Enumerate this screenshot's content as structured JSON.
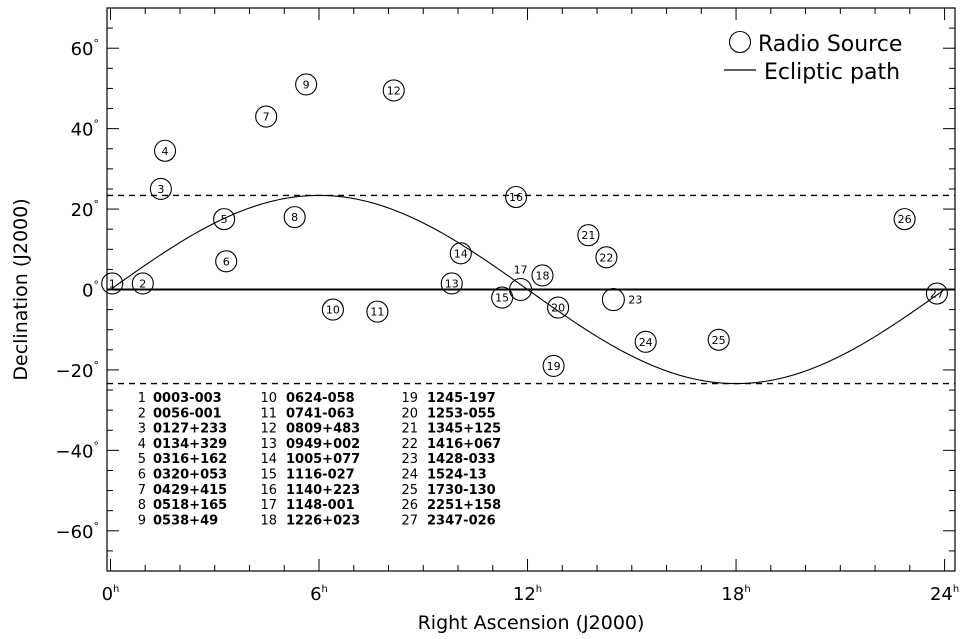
{
  "chart_data": {
    "type": "scatter",
    "xlabel": "Right Ascension (J2000)",
    "ylabel": "Declination (J2000)",
    "xlim": [
      -0.1,
      24.3
    ],
    "ylim": [
      -70,
      70
    ],
    "x_ticks": [
      0,
      6,
      12,
      18,
      24
    ],
    "x_tick_labels": [
      "0h",
      "6h",
      "12h",
      "18h",
      "24h"
    ],
    "x_minor_step": 1,
    "y_ticks": [
      -60,
      -40,
      -20,
      0,
      20,
      40,
      60
    ],
    "y_tick_labels": [
      "−60°",
      "−40°",
      "−20°",
      "0°",
      "20°",
      "40°",
      "60°"
    ],
    "y_minor_step": 5,
    "grid": false,
    "reference_lines": {
      "equator_dec": 0,
      "tropic_dec": [
        23.4,
        -23.4
      ]
    },
    "ecliptic_amplitude_deg": 23.4,
    "legend": {
      "position": "top-right",
      "items": [
        {
          "symbol": "circle",
          "label": "Radio Source"
        },
        {
          "symbol": "line",
          "label": "Ecliptic path"
        }
      ]
    },
    "series": [
      {
        "name": "Radio Source",
        "points": [
          {
            "id": "1",
            "source": "0003-003",
            "ra_h": 0.05,
            "dec": 1.5
          },
          {
            "id": "2",
            "source": "0056-001",
            "ra_h": 0.93,
            "dec": 1.5
          },
          {
            "id": "3",
            "source": "0127+233",
            "ra_h": 1.45,
            "dec": 25
          },
          {
            "id": "4",
            "source": "0134+329",
            "ra_h": 1.57,
            "dec": 34.5
          },
          {
            "id": "5",
            "source": "0316+162",
            "ra_h": 3.27,
            "dec": 17.5
          },
          {
            "id": "6",
            "source": "0320+053",
            "ra_h": 3.33,
            "dec": 7
          },
          {
            "id": "7",
            "source": "0429+415",
            "ra_h": 4.48,
            "dec": 43
          },
          {
            "id": "8",
            "source": "0518+165",
            "ra_h": 5.3,
            "dec": 18
          },
          {
            "id": "9",
            "source": "0538+49",
            "ra_h": 5.63,
            "dec": 51
          },
          {
            "id": "10",
            "source": "0624-058",
            "ra_h": 6.4,
            "dec": -5
          },
          {
            "id": "11",
            "source": "0741-063",
            "ra_h": 7.68,
            "dec": -5.5
          },
          {
            "id": "12",
            "source": "0809+483",
            "ra_h": 8.15,
            "dec": 49.5
          },
          {
            "id": "13",
            "source": "0949+002",
            "ra_h": 9.82,
            "dec": 1.5
          },
          {
            "id": "14",
            "source": "1005+077",
            "ra_h": 10.08,
            "dec": 9
          },
          {
            "id": "15",
            "source": "1116-027",
            "ra_h": 11.27,
            "dec": -2
          },
          {
            "id": "16",
            "source": "1140+223",
            "ra_h": 11.67,
            "dec": 23
          },
          {
            "id": "17",
            "source": "1148-001",
            "ra_h": 11.8,
            "dec": 0
          },
          {
            "id": "18",
            "source": "1226+023",
            "ra_h": 12.43,
            "dec": 3.5
          },
          {
            "id": "19",
            "source": "1245-197",
            "ra_h": 12.75,
            "dec": -19
          },
          {
            "id": "20",
            "source": "1253-055",
            "ra_h": 12.88,
            "dec": -4.5
          },
          {
            "id": "21",
            "source": "1345+125",
            "ra_h": 13.75,
            "dec": 13.5
          },
          {
            "id": "22",
            "source": "1416+067",
            "ra_h": 14.27,
            "dec": 8
          },
          {
            "id": "23",
            "source": "1428-033",
            "ra_h": 14.47,
            "dec": -2.5
          },
          {
            "id": "24",
            "source": "1524-13",
            "ra_h": 15.4,
            "dec": -13
          },
          {
            "id": "25",
            "source": "1730-130",
            "ra_h": 17.5,
            "dec": -12.5
          },
          {
            "id": "26",
            "source": "2251+158",
            "ra_h": 22.85,
            "dec": 17.5
          },
          {
            "id": "27",
            "source": "2347-026",
            "ra_h": 23.78,
            "dec": -1
          }
        ]
      }
    ],
    "source_table": [
      [
        "1",
        "0003-003"
      ],
      [
        "2",
        "0056-001"
      ],
      [
        "3",
        "0127+233"
      ],
      [
        "4",
        "0134+329"
      ],
      [
        "5",
        "0316+162"
      ],
      [
        "6",
        "0320+053"
      ],
      [
        "7",
        "0429+415"
      ],
      [
        "8",
        "0518+165"
      ],
      [
        "9",
        "0538+49"
      ],
      [
        "10",
        "0624-058"
      ],
      [
        "11",
        "0741-063"
      ],
      [
        "12",
        "0809+483"
      ],
      [
        "13",
        "0949+002"
      ],
      [
        "14",
        "1005+077"
      ],
      [
        "15",
        "1116-027"
      ],
      [
        "16",
        "1140+223"
      ],
      [
        "17",
        "1148-001"
      ],
      [
        "18",
        "1226+023"
      ],
      [
        "19",
        "1245-197"
      ],
      [
        "20",
        "1253-055"
      ],
      [
        "21",
        "1345+125"
      ],
      [
        "22",
        "1416+067"
      ],
      [
        "23",
        "1428-033"
      ],
      [
        "24",
        "1524-13"
      ],
      [
        "25",
        "1730-130"
      ],
      [
        "26",
        "2251+158"
      ],
      [
        "27",
        "2347-026"
      ]
    ]
  }
}
